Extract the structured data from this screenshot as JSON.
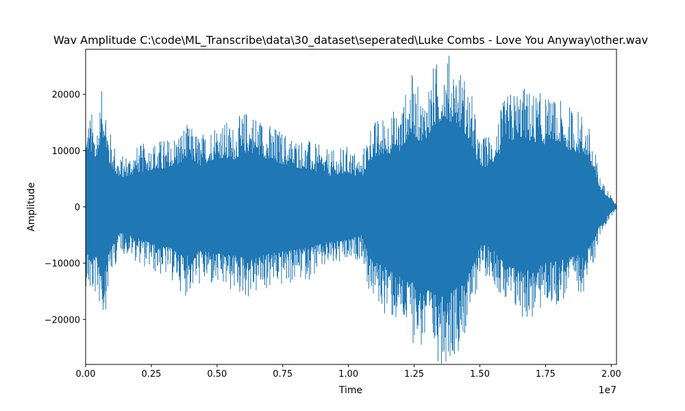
{
  "chart_data": {
    "type": "line",
    "title": "Wav Amplitude C:\\code\\ML_Transcribe\\data\\30_dataset\\seperated\\Luke Combs - Love You Anyway\\other.wav",
    "xlabel": "Time",
    "ylabel": "Amplitude",
    "x_offset_label": "1e7",
    "xlim": [
      0,
      20200000
    ],
    "ylim": [
      -28000,
      28000
    ],
    "x_ticks": [
      0,
      2500000,
      5000000,
      7500000,
      10000000,
      12500000,
      15000000,
      17500000,
      20000000
    ],
    "x_tick_labels": [
      "0.00",
      "0.25",
      "0.50",
      "0.75",
      "1.00",
      "1.25",
      "1.50",
      "1.75",
      "2.00"
    ],
    "y_ticks": [
      -20000,
      -10000,
      0,
      10000,
      20000
    ],
    "y_tick_labels": [
      "−20000",
      "−10000",
      "0",
      "10000",
      "20000"
    ],
    "grid": false,
    "series": [
      {
        "color": "#1f77b4",
        "envelope_x": [
          0,
          200000,
          400000,
          700000,
          900000,
          1300000,
          2000000,
          2600000,
          3200000,
          3800000,
          4400000,
          5000000,
          5600000,
          6200000,
          7000000,
          7800000,
          8500000,
          9300000,
          10000000,
          10500000,
          10800000,
          11500000,
          12000000,
          12400000,
          12800000,
          13200000,
          13600000,
          14000000,
          14400000,
          14700000,
          15000000,
          15500000,
          16000000,
          16500000,
          17000000,
          17500000,
          18000000,
          18500000,
          19000000,
          19300000,
          19600000,
          19900000,
          20200000
        ],
        "envelope_max": [
          15000,
          17500,
          15000,
          23000,
          14000,
          9000,
          11000,
          12000,
          12500,
          15000,
          13000,
          16000,
          15000,
          18000,
          15000,
          13000,
          12000,
          10000,
          11000,
          9000,
          15000,
          17000,
          18000,
          24000,
          20000,
          25000,
          28000,
          27000,
          24000,
          20000,
          12000,
          14000,
          20000,
          22000,
          21000,
          20000,
          19000,
          18000,
          17000,
          12000,
          5000,
          3000,
          300
        ],
        "envelope_min": [
          -14000,
          -17000,
          -16000,
          -20500,
          -14000,
          -8000,
          -10000,
          -12000,
          -13000,
          -16000,
          -14000,
          -15000,
          -15500,
          -16500,
          -15000,
          -14000,
          -13000,
          -11000,
          -10500,
          -9000,
          -16000,
          -20000,
          -22000,
          -24000,
          -26000,
          -27500,
          -28000,
          -27000,
          -24000,
          -20000,
          -12000,
          -13000,
          -19000,
          -20000,
          -20500,
          -18000,
          -17500,
          -16000,
          -15000,
          -11000,
          -5000,
          -2500,
          -300
        ]
      }
    ]
  }
}
